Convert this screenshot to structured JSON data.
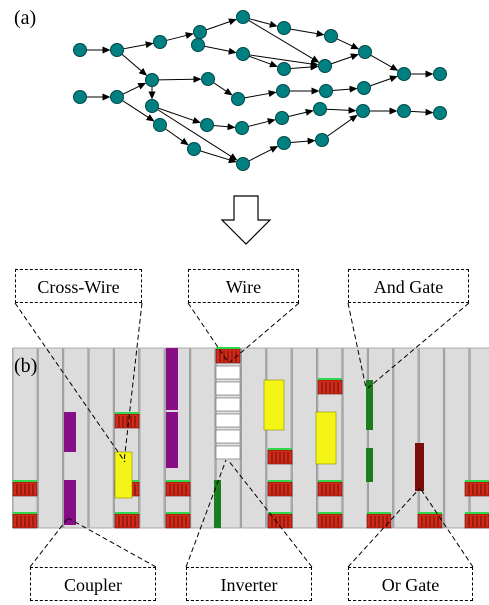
{
  "panel_a_label": "(a)",
  "panel_b_label": "(b)",
  "callouts": {
    "cross_wire": "Cross-Wire",
    "wire": "Wire",
    "and_gate": "And Gate",
    "coupler": "Coupler",
    "inverter": "Inverter",
    "or_gate": "Or Gate"
  },
  "colors": {
    "node_fill": "#008080",
    "edge": "#000000",
    "lane_fill": "#dcdcdc",
    "lane_border": "#9a9a9a",
    "red_block": "#d42a1a",
    "green_rail": "#2fd84a",
    "purple": "#880e88",
    "yellow": "#f4f416",
    "dark_green": "#1b7d1b",
    "maroon": "#7a0c0c",
    "white_cell": "#ffffff"
  },
  "icons": {
    "transform_arrow": "down-arrow-outline-icon"
  }
}
